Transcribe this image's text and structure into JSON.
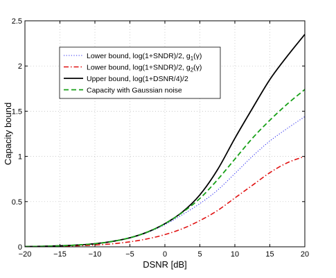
{
  "chart_data": {
    "type": "line",
    "xlabel": "DSNR [dB]",
    "ylabel": "Capacity bound",
    "xlim": [
      -20,
      20
    ],
    "ylim": [
      0,
      2.5
    ],
    "xticks": [
      -20,
      -15,
      -10,
      -5,
      0,
      5,
      10,
      15,
      20
    ],
    "yticks": [
      0,
      0.5,
      1,
      1.5,
      2,
      2.5
    ],
    "xtick_labels": [
      "−20",
      "−15",
      "−10",
      "−5",
      "0",
      "5",
      "10",
      "15",
      "20"
    ],
    "ytick_labels": [
      "0",
      "0.5",
      "1",
      "1.5",
      "2",
      "2.5"
    ],
    "grid": true,
    "legend_position": "upper-left",
    "x": [
      -20,
      -17.5,
      -15,
      -12.5,
      -10,
      -7.5,
      -5,
      -2.5,
      0,
      2.5,
      5,
      7.5,
      10,
      12.5,
      15,
      17.5,
      20
    ],
    "series": [
      {
        "name": "Lower bound, log(1+SNDR)/2, g",
        "name_sub": "1",
        "name_tail": "(γ)",
        "color": "#2a2af0",
        "style": "dotted",
        "values": [
          0.003,
          0.006,
          0.011,
          0.02,
          0.034,
          0.058,
          0.097,
          0.158,
          0.245,
          0.355,
          0.478,
          0.625,
          0.81,
          1.0,
          1.17,
          1.31,
          1.44
        ]
      },
      {
        "name": "Lower bound, log(1+SNDR)/2, g",
        "name_sub": "2",
        "name_tail": "(γ)",
        "color": "#e01010",
        "style": "dashdot",
        "values": [
          0.002,
          0.004,
          0.007,
          0.012,
          0.02,
          0.033,
          0.055,
          0.088,
          0.135,
          0.2,
          0.29,
          0.4,
          0.54,
          0.68,
          0.82,
          0.93,
          1.0
        ]
      },
      {
        "name": "Upper bound, log(1+DSNR/4)/2",
        "color": "#000000",
        "style": "solid",
        "values": [
          0.003,
          0.006,
          0.011,
          0.02,
          0.034,
          0.06,
          0.1,
          0.163,
          0.256,
          0.385,
          0.575,
          0.85,
          1.2,
          1.53,
          1.85,
          2.11,
          2.35
        ]
      },
      {
        "name": "Capacity with Gaussian noise",
        "color": "#17a017",
        "style": "dashed",
        "values": [
          0.003,
          0.006,
          0.011,
          0.02,
          0.034,
          0.06,
          0.1,
          0.163,
          0.256,
          0.38,
          0.535,
          0.74,
          0.97,
          1.2,
          1.4,
          1.58,
          1.74
        ]
      }
    ]
  }
}
